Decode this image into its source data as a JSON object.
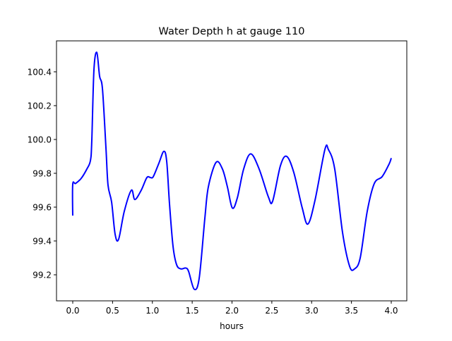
{
  "chart_data": {
    "type": "line",
    "title": "Water Depth h at gauge 110",
    "xlabel": "hours",
    "ylabel": "",
    "xlim": [
      -0.204,
      4.195
    ],
    "ylim": [
      99.046,
      100.583
    ],
    "xticks": [
      0.0,
      0.5,
      1.0,
      1.5,
      2.0,
      2.5,
      3.0,
      3.5,
      4.0
    ],
    "xtick_labels": [
      "0.0",
      "0.5",
      "1.0",
      "1.5",
      "2.0",
      "2.5",
      "3.0",
      "3.5",
      "4.0"
    ],
    "yticks": [
      99.2,
      99.4,
      99.6,
      99.8,
      100.0,
      100.2,
      100.4
    ],
    "ytick_labels": [
      "99.2",
      "99.4",
      "99.6",
      "99.8",
      "100.0",
      "100.2",
      "100.4"
    ],
    "grid": false,
    "series": [
      {
        "name": "h",
        "color": "#0000ff",
        "x": [
          0.0,
          0.0,
          0.035,
          0.106,
          0.177,
          0.222,
          0.239,
          0.266,
          0.302,
          0.337,
          0.373,
          0.417,
          0.443,
          0.488,
          0.532,
          0.576,
          0.647,
          0.736,
          0.78,
          0.86,
          0.931,
          0.976,
          1.011,
          1.082,
          1.144,
          1.18,
          1.215,
          1.259,
          1.304,
          1.357,
          1.419,
          1.455,
          1.525,
          1.588,
          1.659,
          1.703,
          1.8,
          1.88,
          1.942,
          2.004,
          2.067,
          2.146,
          2.235,
          2.341,
          2.457,
          2.51,
          2.608,
          2.687,
          2.776,
          2.882,
          2.953,
          3.042,
          3.166,
          3.211,
          3.29,
          3.388,
          3.477,
          3.539,
          3.61,
          3.698,
          3.787,
          3.885,
          3.973,
          4.0
        ],
        "y": [
          99.55,
          99.735,
          99.74,
          99.77,
          99.825,
          99.875,
          99.99,
          100.41,
          100.515,
          100.375,
          100.3,
          99.95,
          99.73,
          99.63,
          99.44,
          99.41,
          99.575,
          99.7,
          99.645,
          99.7,
          99.775,
          99.775,
          99.78,
          99.86,
          99.93,
          99.87,
          99.62,
          99.37,
          99.26,
          99.235,
          99.24,
          99.22,
          99.115,
          99.18,
          99.535,
          99.72,
          99.865,
          99.825,
          99.72,
          99.595,
          99.655,
          99.825,
          99.915,
          99.825,
          99.66,
          99.635,
          99.845,
          99.9,
          99.805,
          99.595,
          99.5,
          99.64,
          99.94,
          99.94,
          99.825,
          99.45,
          99.25,
          99.235,
          99.3,
          99.575,
          99.74,
          99.78,
          99.855,
          99.89
        ]
      }
    ]
  }
}
